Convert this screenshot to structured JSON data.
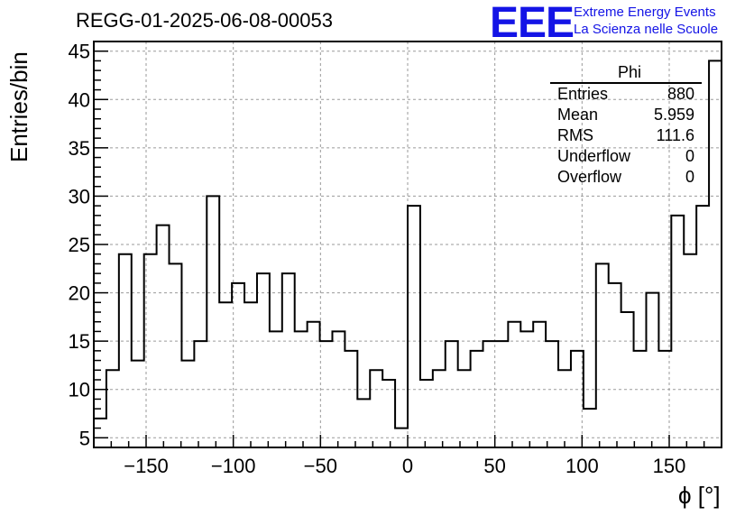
{
  "title": "REGG-01-2025-06-08-00053",
  "logo": {
    "mark": "EEE",
    "line1": "Extreme Energy Events",
    "line2": "La Scienza nelle Scuole",
    "color": "#1414e6"
  },
  "stats_box": {
    "name": "Phi",
    "rows": [
      {
        "label": "Entries",
        "value": "880"
      },
      {
        "label": "Mean",
        "value": "5.959"
      },
      {
        "label": "RMS",
        "value": "111.6"
      },
      {
        "label": "Underflow",
        "value": "0"
      },
      {
        "label": "Overflow",
        "value": "0"
      }
    ]
  },
  "chart_data": {
    "type": "histogram",
    "xlabel": "ϕ [°]",
    "ylabel": "Entries/bin",
    "xlim": [
      -180,
      180
    ],
    "ylim": [
      4,
      46
    ],
    "bin_width": 7.2,
    "x_ticks": [
      -150,
      -100,
      -50,
      0,
      50,
      100,
      150
    ],
    "y_ticks": [
      5,
      10,
      15,
      20,
      25,
      30,
      35,
      40,
      45
    ],
    "grid": true,
    "values": [
      7,
      12,
      24,
      13,
      24,
      27,
      23,
      13,
      15,
      30,
      19,
      21,
      19,
      22,
      16,
      22,
      16,
      17,
      15,
      16,
      14,
      9,
      12,
      11,
      6,
      29,
      11,
      12,
      15,
      12,
      14,
      15,
      15,
      17,
      16,
      17,
      15,
      12,
      14,
      8,
      23,
      21,
      18,
      14,
      20,
      14,
      28,
      24,
      29,
      44
    ]
  }
}
